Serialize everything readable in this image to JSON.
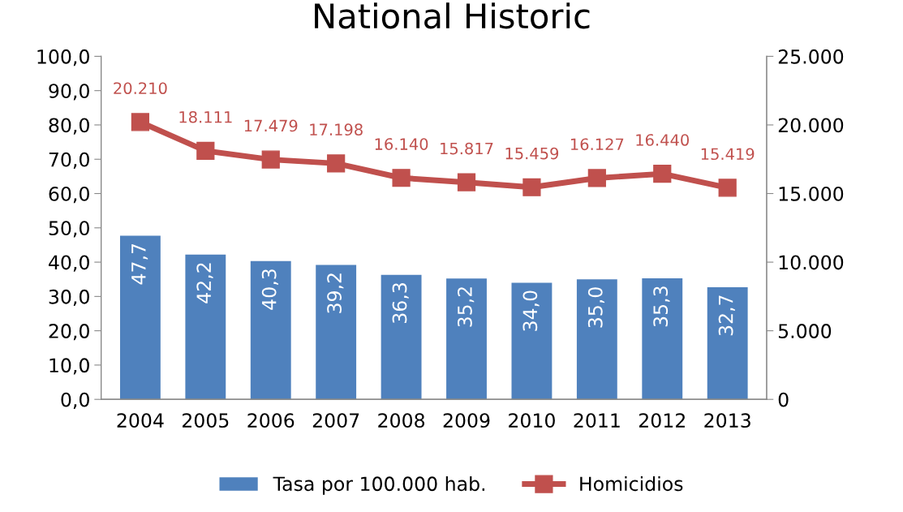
{
  "chart_data": {
    "type": "bar",
    "title": "National Historic",
    "categories": [
      "2004",
      "2005",
      "2006",
      "2007",
      "2008",
      "2009",
      "2010",
      "2011",
      "2012",
      "2013"
    ],
    "series": [
      {
        "name": "Tasa por 100.000 hab.",
        "color": "#4f81bd",
        "values": [
          47.7,
          42.2,
          40.3,
          39.2,
          36.3,
          35.2,
          34.0,
          35.0,
          35.3,
          32.7
        ],
        "value_labels": [
          "47,7",
          "42,2",
          "40,3",
          "39,2",
          "36,3",
          "35,2",
          "34,0",
          "35,0",
          "35,3",
          "32,7"
        ]
      },
      {
        "name": "Homicidios",
        "type": "line",
        "axis": "y2",
        "color": "#c0504d",
        "marker": "square",
        "values": [
          20210,
          18111,
          17479,
          17198,
          16140,
          15817,
          15459,
          16127,
          16440,
          15419
        ],
        "value_labels": [
          "20.210",
          "18.111",
          "17.479",
          "17.198",
          "16.140",
          "15.817",
          "15.459",
          "16.127",
          "16.440",
          "15.419"
        ]
      }
    ],
    "ylim": [
      0,
      100
    ],
    "yticks": [
      {
        "value": 0,
        "label": "0,0"
      },
      {
        "value": 10,
        "label": "10,0"
      },
      {
        "value": 20,
        "label": "20,0"
      },
      {
        "value": 30,
        "label": "30,0"
      },
      {
        "value": 40,
        "label": "40,0"
      },
      {
        "value": 50,
        "label": "50,0"
      },
      {
        "value": 60,
        "label": "60,0"
      },
      {
        "value": 70,
        "label": "70,0"
      },
      {
        "value": 80,
        "label": "80,0"
      },
      {
        "value": 90,
        "label": "90,0"
      },
      {
        "value": 100,
        "label": "100,0"
      }
    ],
    "y2lim": [
      0,
      25000
    ],
    "y2ticks": [
      0,
      {
        "value": 5000,
        "label": "5.000"
      },
      {
        "value": 10000,
        "label": "10.000"
      },
      {
        "value": 15000,
        "label": "15.000"
      },
      {
        "value": 20000,
        "label": "20.000"
      },
      {
        "value": 25000,
        "label": "25.000"
      }
    ],
    "grid": false,
    "legend": "bottom"
  }
}
